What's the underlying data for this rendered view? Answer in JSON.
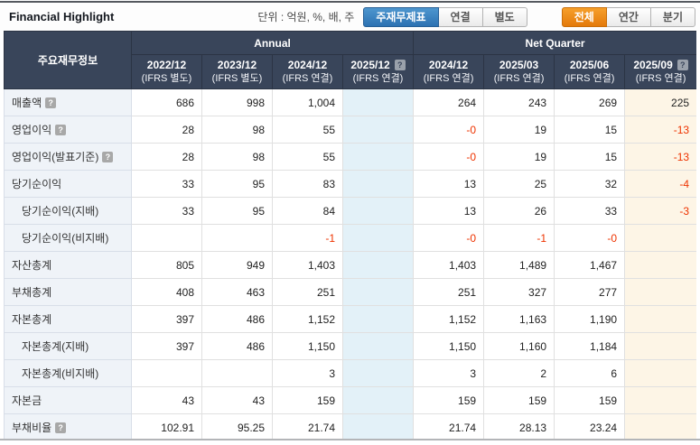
{
  "header": {
    "title": "Financial Highlight",
    "unit_label": "단위 : 억원, %, 배, 주",
    "statement_buttons": [
      {
        "label": "주재무제표",
        "active": true
      },
      {
        "label": "연결",
        "active": false
      },
      {
        "label": "별도",
        "active": false
      }
    ],
    "period_buttons": [
      {
        "label": "전체",
        "active": true
      },
      {
        "label": "연간",
        "active": false
      },
      {
        "label": "분기",
        "active": false
      }
    ]
  },
  "table": {
    "corner_label": "주요재무정보",
    "groups": [
      {
        "label": "Annual",
        "span": 4
      },
      {
        "label": "Net Quarter",
        "span": 4
      }
    ],
    "columns": [
      {
        "period": "2022/12",
        "basis": "(IFRS 별도)",
        "help": false,
        "highlight": ""
      },
      {
        "period": "2023/12",
        "basis": "(IFRS 별도)",
        "help": false,
        "highlight": ""
      },
      {
        "period": "2024/12",
        "basis": "(IFRS 연결)",
        "help": false,
        "highlight": ""
      },
      {
        "period": "2025/12",
        "basis": "(IFRS 연결)",
        "help": true,
        "highlight": "blue"
      },
      {
        "period": "2024/12",
        "basis": "(IFRS 연결)",
        "help": false,
        "highlight": ""
      },
      {
        "period": "2025/03",
        "basis": "(IFRS 연결)",
        "help": false,
        "highlight": ""
      },
      {
        "period": "2025/06",
        "basis": "(IFRS 연결)",
        "help": false,
        "highlight": ""
      },
      {
        "period": "2025/09",
        "basis": "(IFRS 연결)",
        "help": true,
        "highlight": "cream"
      }
    ],
    "rows": [
      {
        "label": "매출액",
        "help": true,
        "indent": false,
        "values": [
          "686",
          "998",
          "1,004",
          "",
          "264",
          "243",
          "269",
          "225"
        ]
      },
      {
        "label": "영업이익",
        "help": true,
        "indent": false,
        "values": [
          "28",
          "98",
          "55",
          "",
          "-0",
          "19",
          "15",
          "-13"
        ]
      },
      {
        "label": "영업이익(발표기준)",
        "help": true,
        "indent": false,
        "values": [
          "28",
          "98",
          "55",
          "",
          "-0",
          "19",
          "15",
          "-13"
        ]
      },
      {
        "label": "당기순이익",
        "help": false,
        "indent": false,
        "values": [
          "33",
          "95",
          "83",
          "",
          "13",
          "25",
          "32",
          "-4"
        ]
      },
      {
        "label": "당기순이익(지배)",
        "help": false,
        "indent": true,
        "values": [
          "33",
          "95",
          "84",
          "",
          "13",
          "26",
          "33",
          "-3"
        ]
      },
      {
        "label": "당기순이익(비지배)",
        "help": false,
        "indent": true,
        "values": [
          "",
          "",
          "-1",
          "",
          "-0",
          "-1",
          "-0",
          ""
        ]
      },
      {
        "label": "자산총계",
        "help": false,
        "indent": false,
        "values": [
          "805",
          "949",
          "1,403",
          "",
          "1,403",
          "1,489",
          "1,467",
          ""
        ]
      },
      {
        "label": "부채총계",
        "help": false,
        "indent": false,
        "values": [
          "408",
          "463",
          "251",
          "",
          "251",
          "327",
          "277",
          ""
        ]
      },
      {
        "label": "자본총계",
        "help": false,
        "indent": false,
        "values": [
          "397",
          "486",
          "1,152",
          "",
          "1,152",
          "1,163",
          "1,190",
          ""
        ]
      },
      {
        "label": "자본총계(지배)",
        "help": false,
        "indent": true,
        "values": [
          "397",
          "486",
          "1,150",
          "",
          "1,150",
          "1,160",
          "1,184",
          ""
        ]
      },
      {
        "label": "자본총계(비지배)",
        "help": false,
        "indent": true,
        "values": [
          "",
          "",
          "3",
          "",
          "3",
          "2",
          "6",
          ""
        ]
      },
      {
        "label": "자본금",
        "help": false,
        "indent": false,
        "values": [
          "43",
          "43",
          "159",
          "",
          "159",
          "159",
          "159",
          ""
        ]
      },
      {
        "label": "부채비율",
        "help": true,
        "indent": false,
        "values": [
          "102.91",
          "95.25",
          "21.74",
          "",
          "21.74",
          "28.13",
          "23.24",
          ""
        ]
      }
    ],
    "cutoff_row": {
      "label": "",
      "values": [
        "",
        "",
        "",
        "",
        "",
        "",
        "",
        ""
      ]
    }
  },
  "icons": {
    "help_glyph": "?"
  },
  "colors": {
    "header_bg": "#39455a",
    "label_bg": "#eff3f8",
    "estimate_blue": "#e3f1f8",
    "estimate_cream": "#fdf5e6",
    "negative_red": "#ee3300",
    "accent_blue": "#2c71b2",
    "accent_orange": "#e4790a"
  }
}
